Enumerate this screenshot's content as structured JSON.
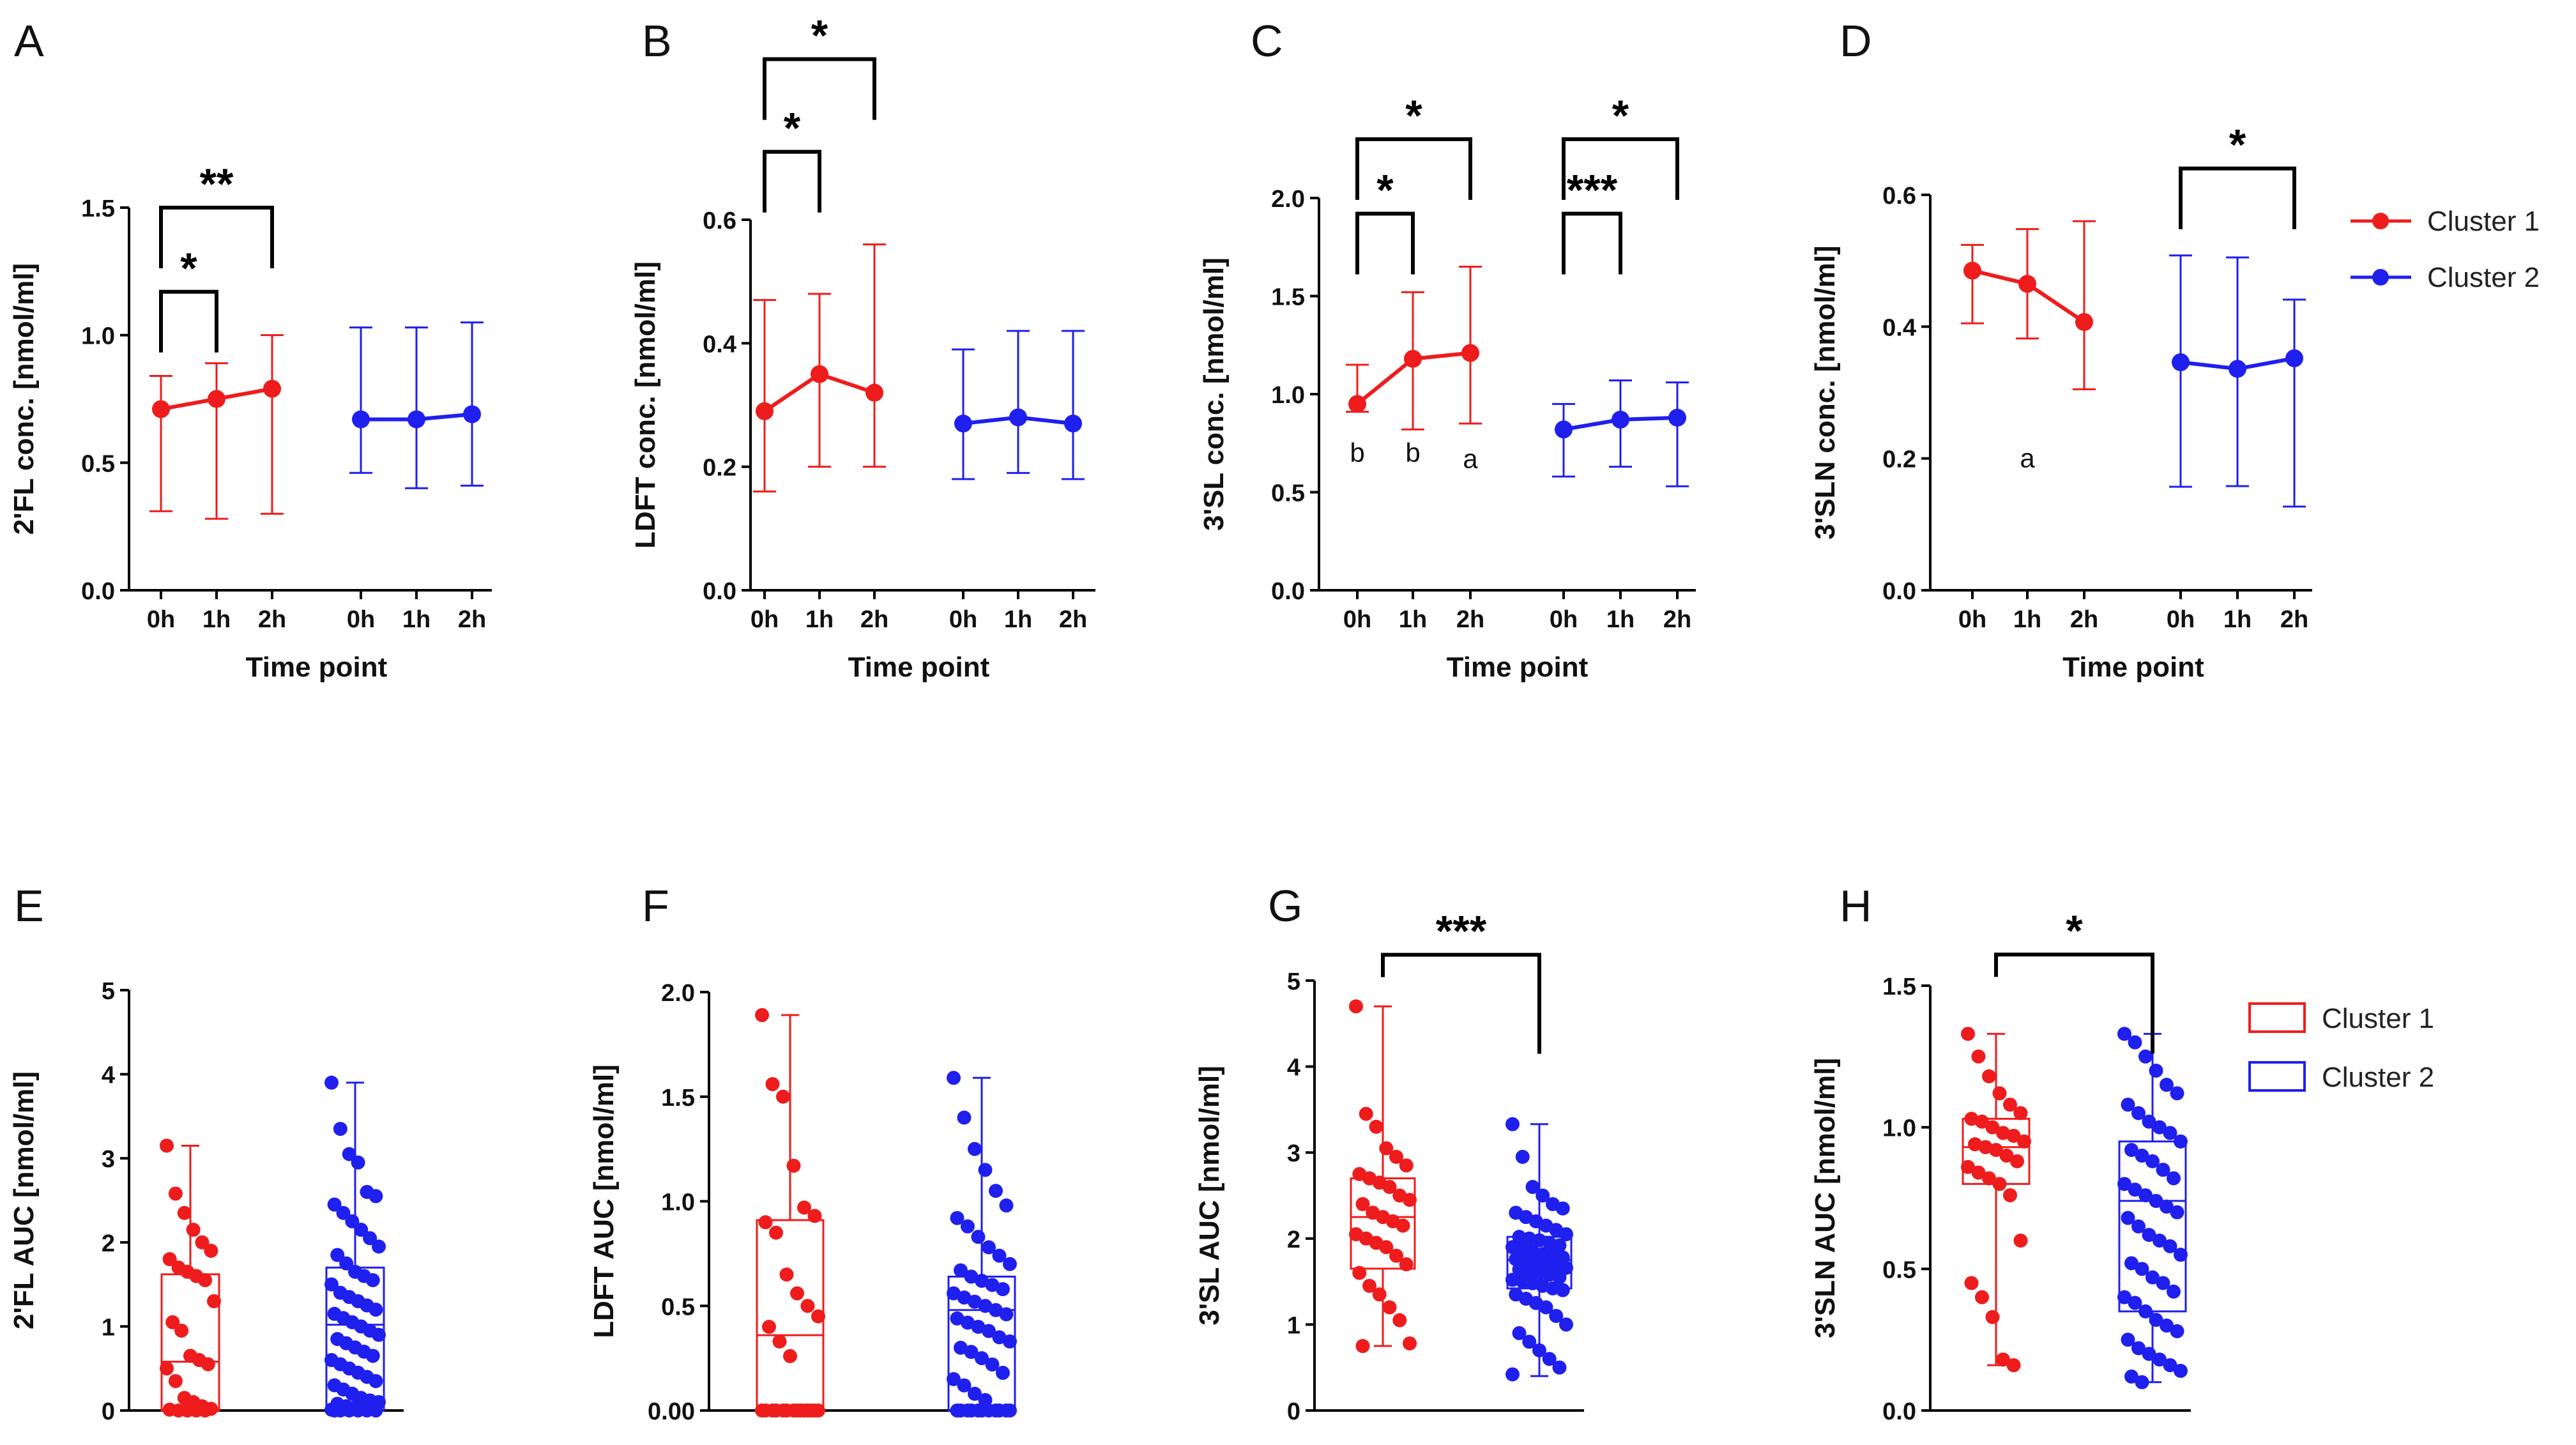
{
  "legend": {
    "top": [
      {
        "label": "Cluster 1",
        "color": "#ee1c1c"
      },
      {
        "label": "Cluster 2",
        "color": "#1f1fee"
      }
    ],
    "bottom": [
      {
        "label": "Cluster 1",
        "color": "#ee1c1c"
      },
      {
        "label": "Cluster 2",
        "color": "#1f1fee"
      }
    ]
  },
  "chart_data": [
    {
      "panel": "A",
      "type": "line",
      "ylabel": "2'FL conc. [nmol/ml]",
      "xlabel": "Time point",
      "ylim": [
        0,
        1.5
      ],
      "yticks": [
        "0.0",
        "0.5",
        "1.0",
        "1.5"
      ],
      "categories": [
        "0h",
        "1h",
        "2h"
      ],
      "series": [
        {
          "name": "Cluster 1",
          "color": "#ee1c1c",
          "mean": [
            0.71,
            0.75,
            0.79
          ],
          "lo": [
            0.31,
            0.28,
            0.3
          ],
          "hi": [
            0.84,
            0.89,
            1.0
          ]
        },
        {
          "name": "Cluster 2",
          "color": "#1f1fee",
          "mean": [
            0.67,
            0.67,
            0.69
          ],
          "lo": [
            0.46,
            0.4,
            0.41
          ],
          "hi": [
            1.03,
            1.03,
            1.05
          ]
        }
      ],
      "brackets": [
        {
          "group": 0,
          "from": 0,
          "to": 1,
          "y": 1.17,
          "label": "*"
        },
        {
          "group": 0,
          "from": 0,
          "to": 2,
          "y": 1.5,
          "label": "**"
        }
      ],
      "annotations": []
    },
    {
      "panel": "B",
      "type": "line",
      "ylabel": "LDFT conc. [nmol/ml]",
      "xlabel": "Time point",
      "ylim": [
        0,
        0.6
      ],
      "yticks": [
        "0.0",
        "0.2",
        "0.4",
        "0.6"
      ],
      "categories": [
        "0h",
        "1h",
        "2h"
      ],
      "series": [
        {
          "name": "Cluster 1",
          "color": "#ee1c1c",
          "mean": [
            0.29,
            0.35,
            0.32
          ],
          "lo": [
            0.16,
            0.2,
            0.2
          ],
          "hi": [
            0.47,
            0.48,
            0.56
          ]
        },
        {
          "name": "Cluster 2",
          "color": "#1f1fee",
          "mean": [
            0.27,
            0.28,
            0.27
          ],
          "lo": [
            0.18,
            0.19,
            0.18
          ],
          "hi": [
            0.39,
            0.42,
            0.42
          ]
        }
      ],
      "brackets": [
        {
          "group": 0,
          "from": 0,
          "to": 1,
          "y": 0.71,
          "label": "*"
        },
        {
          "group": 0,
          "from": 0,
          "to": 2,
          "y": 0.86,
          "label": "*"
        }
      ],
      "annotations": []
    },
    {
      "panel": "C",
      "type": "line",
      "ylabel": "3'SL conc. [nmol/ml]",
      "xlabel": "Time point",
      "ylim": [
        0,
        2.0
      ],
      "yticks": [
        "0.0",
        "0.5",
        "1.0",
        "1.5",
        "2.0"
      ],
      "categories": [
        "0h",
        "1h",
        "2h"
      ],
      "series": [
        {
          "name": "Cluster 1",
          "color": "#ee1c1c",
          "mean": [
            0.95,
            1.18,
            1.21
          ],
          "lo": [
            0.91,
            0.82,
            0.85
          ],
          "hi": [
            1.15,
            1.52,
            1.65
          ]
        },
        {
          "name": "Cluster 2",
          "color": "#1f1fee",
          "mean": [
            0.82,
            0.87,
            0.88
          ],
          "lo": [
            0.58,
            0.63,
            0.53
          ],
          "hi": [
            0.95,
            1.07,
            1.06
          ]
        }
      ],
      "brackets": [
        {
          "group": 0,
          "from": 0,
          "to": 1,
          "y": 1.92,
          "label": "*"
        },
        {
          "group": 0,
          "from": 0,
          "to": 2,
          "y": 2.3,
          "label": "*"
        },
        {
          "group": 1,
          "from": 0,
          "to": 1,
          "y": 1.92,
          "label": "***"
        },
        {
          "group": 1,
          "from": 0,
          "to": 2,
          "y": 2.3,
          "label": "*"
        }
      ],
      "annotations": [
        {
          "group": 0,
          "index": 0,
          "y": 0.7,
          "text": "b"
        },
        {
          "group": 0,
          "index": 1,
          "y": 0.7,
          "text": "b"
        },
        {
          "group": 0,
          "index": 2,
          "y": 0.67,
          "text": "a"
        }
      ]
    },
    {
      "panel": "D",
      "type": "line",
      "ylabel": "3'SLN conc. [nmol/ml]",
      "xlabel": "Time point",
      "ylim": [
        0,
        0.6
      ],
      "yticks": [
        "0.0",
        "0.2",
        "0.4",
        "0.6"
      ],
      "categories": [
        "0h",
        "1h",
        "2h"
      ],
      "series": [
        {
          "name": "Cluster 1",
          "color": "#ee1c1c",
          "mean": [
            0.485,
            0.465,
            0.407
          ],
          "lo": [
            0.405,
            0.382,
            0.305
          ],
          "hi": [
            0.524,
            0.548,
            0.56
          ]
        },
        {
          "name": "Cluster 2",
          "color": "#1f1fee",
          "mean": [
            0.346,
            0.336,
            0.352
          ],
          "lo": [
            0.157,
            0.158,
            0.127
          ],
          "hi": [
            0.508,
            0.505,
            0.441
          ]
        }
      ],
      "brackets": [
        {
          "group": 1,
          "from": 0,
          "to": 2,
          "y": 0.64,
          "label": "*"
        }
      ],
      "annotations": [
        {
          "group": 0,
          "index": 1,
          "y": 0.2,
          "text": "a"
        }
      ]
    },
    {
      "panel": "E",
      "type": "box",
      "ylabel": "2'FL AUC [nmol/ml]",
      "ylim": [
        0,
        5
      ],
      "yticks": [
        "0",
        "1",
        "2",
        "3",
        "4",
        "5"
      ],
      "boxes": [
        {
          "name": "Cluster 1",
          "color": "#ee1c1c",
          "min": 0.0,
          "q1": 0.0,
          "median": 0.58,
          "q3": 1.62,
          "max": 3.15,
          "points": [
            3.15,
            2.58,
            2.35,
            2.15,
            2.0,
            1.9,
            1.8,
            1.7,
            1.65,
            1.6,
            1.55,
            1.3,
            1.05,
            0.95,
            0.65,
            0.6,
            0.55,
            0.5,
            0.35,
            0.15,
            0.1,
            0.05,
            0.02,
            0.01,
            0.0,
            0.0,
            0.0,
            0.0
          ]
        },
        {
          "name": "Cluster 2",
          "color": "#1f1fee",
          "min": 0.0,
          "q1": 0.0,
          "median": 1.02,
          "q3": 1.7,
          "max": 3.9,
          "points": [
            3.9,
            3.35,
            3.05,
            2.95,
            2.6,
            2.55,
            2.45,
            2.35,
            2.25,
            2.15,
            2.05,
            1.95,
            1.85,
            1.75,
            1.65,
            1.6,
            1.55,
            1.5,
            1.4,
            1.35,
            1.3,
            1.25,
            1.2,
            1.15,
            1.1,
            1.05,
            1.0,
            0.95,
            0.9,
            0.85,
            0.8,
            0.75,
            0.7,
            0.65,
            0.6,
            0.55,
            0.5,
            0.45,
            0.4,
            0.35,
            0.3,
            0.25,
            0.2,
            0.15,
            0.12,
            0.1,
            0.08,
            0.05,
            0.04,
            0.03,
            0.02,
            0.01,
            0.0,
            0.0,
            0.0,
            0.0,
            0.0,
            0.0
          ]
        }
      ],
      "bracket": null
    },
    {
      "panel": "F",
      "type": "box",
      "ylabel": "LDFT AUC [nmol/ml]",
      "ylim": [
        0,
        2.0
      ],
      "yticks": [
        "0.00",
        "0.5",
        "1.0",
        "1.5",
        "2.0"
      ],
      "boxes": [
        {
          "name": "Cluster 1",
          "color": "#ee1c1c",
          "min": 0.0,
          "q1": 0.0,
          "median": 0.36,
          "q3": 0.91,
          "max": 1.89,
          "points": [
            1.89,
            1.56,
            1.5,
            1.17,
            0.97,
            0.93,
            0.9,
            0.85,
            0.65,
            0.56,
            0.5,
            0.45,
            0.4,
            0.33,
            0.26,
            0.0,
            0.0,
            0.0,
            0.0,
            0.0,
            0.0,
            0.0,
            0.0,
            0.0,
            0.0,
            0.0,
            0.0,
            0.0,
            0.0
          ]
        },
        {
          "name": "Cluster 2",
          "color": "#1f1fee",
          "min": 0.0,
          "q1": 0.0,
          "median": 0.48,
          "q3": 0.64,
          "max": 1.59,
          "points": [
            1.59,
            1.4,
            1.25,
            1.15,
            1.05,
            0.98,
            0.92,
            0.88,
            0.83,
            0.78,
            0.74,
            0.7,
            0.67,
            0.64,
            0.62,
            0.6,
            0.58,
            0.56,
            0.54,
            0.52,
            0.5,
            0.48,
            0.46,
            0.44,
            0.42,
            0.4,
            0.38,
            0.35,
            0.33,
            0.3,
            0.28,
            0.25,
            0.22,
            0.18,
            0.15,
            0.12,
            0.08,
            0.05,
            0.0,
            0.0,
            0.0,
            0.0,
            0.0,
            0.0,
            0.0,
            0.0,
            0.0,
            0.0,
            0.0
          ]
        }
      ],
      "bracket": null
    },
    {
      "panel": "G",
      "type": "box",
      "ylabel": "3'SL AUC [nmol/ml]",
      "ylim": [
        0,
        5
      ],
      "yticks": [
        "0",
        "1",
        "2",
        "3",
        "4",
        "5"
      ],
      "boxes": [
        {
          "name": "Cluster 1",
          "color": "#ee1c1c",
          "min": 0.75,
          "q1": 1.65,
          "median": 2.25,
          "q3": 2.7,
          "max": 4.7,
          "points": [
            4.7,
            3.45,
            3.3,
            3.05,
            2.95,
            2.85,
            2.75,
            2.7,
            2.65,
            2.6,
            2.5,
            2.45,
            2.4,
            2.3,
            2.25,
            2.2,
            2.15,
            2.05,
            2.0,
            1.95,
            1.9,
            1.8,
            1.7,
            1.6,
            1.45,
            1.35,
            1.2,
            1.05,
            0.78,
            0.75
          ]
        },
        {
          "name": "Cluster 2",
          "color": "#1f1fee",
          "min": 0.4,
          "q1": 1.42,
          "median": 1.75,
          "q3": 2.02,
          "max": 3.33,
          "points": [
            3.33,
            2.95,
            2.6,
            2.5,
            2.4,
            2.35,
            2.3,
            2.25,
            2.2,
            2.15,
            2.1,
            2.05,
            2.02,
            2.0,
            1.98,
            1.95,
            1.92,
            1.9,
            1.88,
            1.85,
            1.82,
            1.8,
            1.78,
            1.76,
            1.74,
            1.72,
            1.7,
            1.68,
            1.66,
            1.64,
            1.62,
            1.6,
            1.58,
            1.55,
            1.52,
            1.5,
            1.48,
            1.45,
            1.42,
            1.4,
            1.35,
            1.3,
            1.25,
            1.2,
            1.1,
            1.0,
            0.9,
            0.8,
            0.7,
            0.6,
            0.5,
            0.42
          ]
        }
      ],
      "bracket": {
        "y": 5.3,
        "label": "***"
      }
    },
    {
      "panel": "H",
      "type": "box",
      "ylabel": "3'SLN AUC [nmol/ml]",
      "ylim": [
        0,
        1.5
      ],
      "yticks": [
        "0.0",
        "0.5",
        "1.0",
        "1.5"
      ],
      "boxes": [
        {
          "name": "Cluster 1",
          "color": "#ee1c1c",
          "min": 0.16,
          "q1": 0.8,
          "median": 0.93,
          "q3": 1.03,
          "max": 1.33,
          "points": [
            1.33,
            1.25,
            1.18,
            1.12,
            1.08,
            1.05,
            1.03,
            1.02,
            1.0,
            0.98,
            0.97,
            0.95,
            0.94,
            0.93,
            0.92,
            0.9,
            0.88,
            0.86,
            0.84,
            0.82,
            0.8,
            0.76,
            0.6,
            0.45,
            0.4,
            0.33,
            0.18,
            0.16
          ]
        },
        {
          "name": "Cluster 2",
          "color": "#1f1fee",
          "min": 0.1,
          "q1": 0.35,
          "median": 0.74,
          "q3": 0.95,
          "max": 1.33,
          "points": [
            1.33,
            1.3,
            1.25,
            1.2,
            1.15,
            1.12,
            1.08,
            1.05,
            1.02,
            1.0,
            0.98,
            0.95,
            0.92,
            0.9,
            0.88,
            0.85,
            0.82,
            0.8,
            0.78,
            0.76,
            0.74,
            0.72,
            0.7,
            0.68,
            0.65,
            0.62,
            0.6,
            0.58,
            0.55,
            0.52,
            0.5,
            0.47,
            0.45,
            0.42,
            0.4,
            0.38,
            0.35,
            0.32,
            0.3,
            0.28,
            0.25,
            0.22,
            0.2,
            0.18,
            0.16,
            0.14,
            0.12,
            0.1
          ]
        }
      ],
      "bracket": {
        "y": 1.61,
        "label": "*"
      }
    }
  ]
}
